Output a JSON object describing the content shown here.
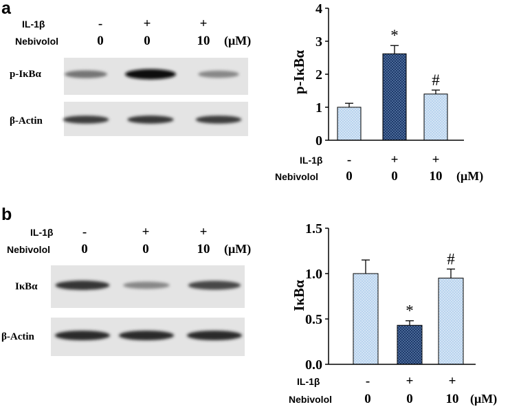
{
  "panels": [
    {
      "letter": "a",
      "condition_labels": {
        "il1b": "IL-1β",
        "nebivolol": "Nebivolol"
      },
      "conditions": {
        "il1b": [
          "-",
          "+",
          "+"
        ],
        "nebivolol": [
          "0",
          "0",
          "10"
        ],
        "unit": "(μM)"
      },
      "blots": [
        {
          "label": "p-IκBα",
          "band_intensity": [
            0.45,
            1.0,
            0.35
          ]
        },
        {
          "label": "β-Actin",
          "band_intensity": [
            0.75,
            0.78,
            0.75
          ]
        }
      ],
      "chart_data": {
        "type": "bar",
        "categories": [
          "IL-1β - / Nebivolol 0",
          "IL-1β + / Nebivolol 0",
          "IL-1β + / Nebivolol 10"
        ],
        "values": [
          1.0,
          2.62,
          1.4
        ],
        "errors": [
          0.12,
          0.25,
          0.12
        ],
        "annotations": [
          "",
          "*",
          "#"
        ],
        "bar_colors": [
          "#b8d3ee",
          "#1e3a6b",
          "#b8d3ee"
        ],
        "ylabel": "p-IκBα",
        "ylim": [
          0,
          4
        ],
        "yticks": [
          "0",
          "1",
          "2",
          "3",
          "4"
        ],
        "grid": false
      }
    },
    {
      "letter": "b",
      "condition_labels": {
        "il1b": "IL-1β",
        "nebivolol": "Nebivolol"
      },
      "conditions": {
        "il1b": [
          "-",
          "+",
          "+"
        ],
        "nebivolol": [
          "0",
          "0",
          "10"
        ],
        "unit": "(μM)"
      },
      "blots": [
        {
          "label": "IκBα",
          "band_intensity": [
            0.8,
            0.35,
            0.7
          ]
        },
        {
          "label": "β-Actin",
          "band_intensity": [
            0.85,
            0.85,
            0.85
          ]
        }
      ],
      "chart_data": {
        "type": "bar",
        "categories": [
          "IL-1β - / Nebivolol 0",
          "IL-1β + / Nebivolol 0",
          "IL-1β + / Nebivolol 10"
        ],
        "values": [
          1.0,
          0.43,
          0.95
        ],
        "errors": [
          0.15,
          0.05,
          0.1
        ],
        "annotations": [
          "",
          "*",
          "#"
        ],
        "bar_colors": [
          "#b8d3ee",
          "#1e3a6b",
          "#b8d3ee"
        ],
        "ylabel": "IκBα",
        "ylim": [
          0,
          1.5
        ],
        "yticks": [
          "0.0",
          "0.5",
          "1.0",
          "1.5"
        ],
        "grid": false
      }
    }
  ]
}
